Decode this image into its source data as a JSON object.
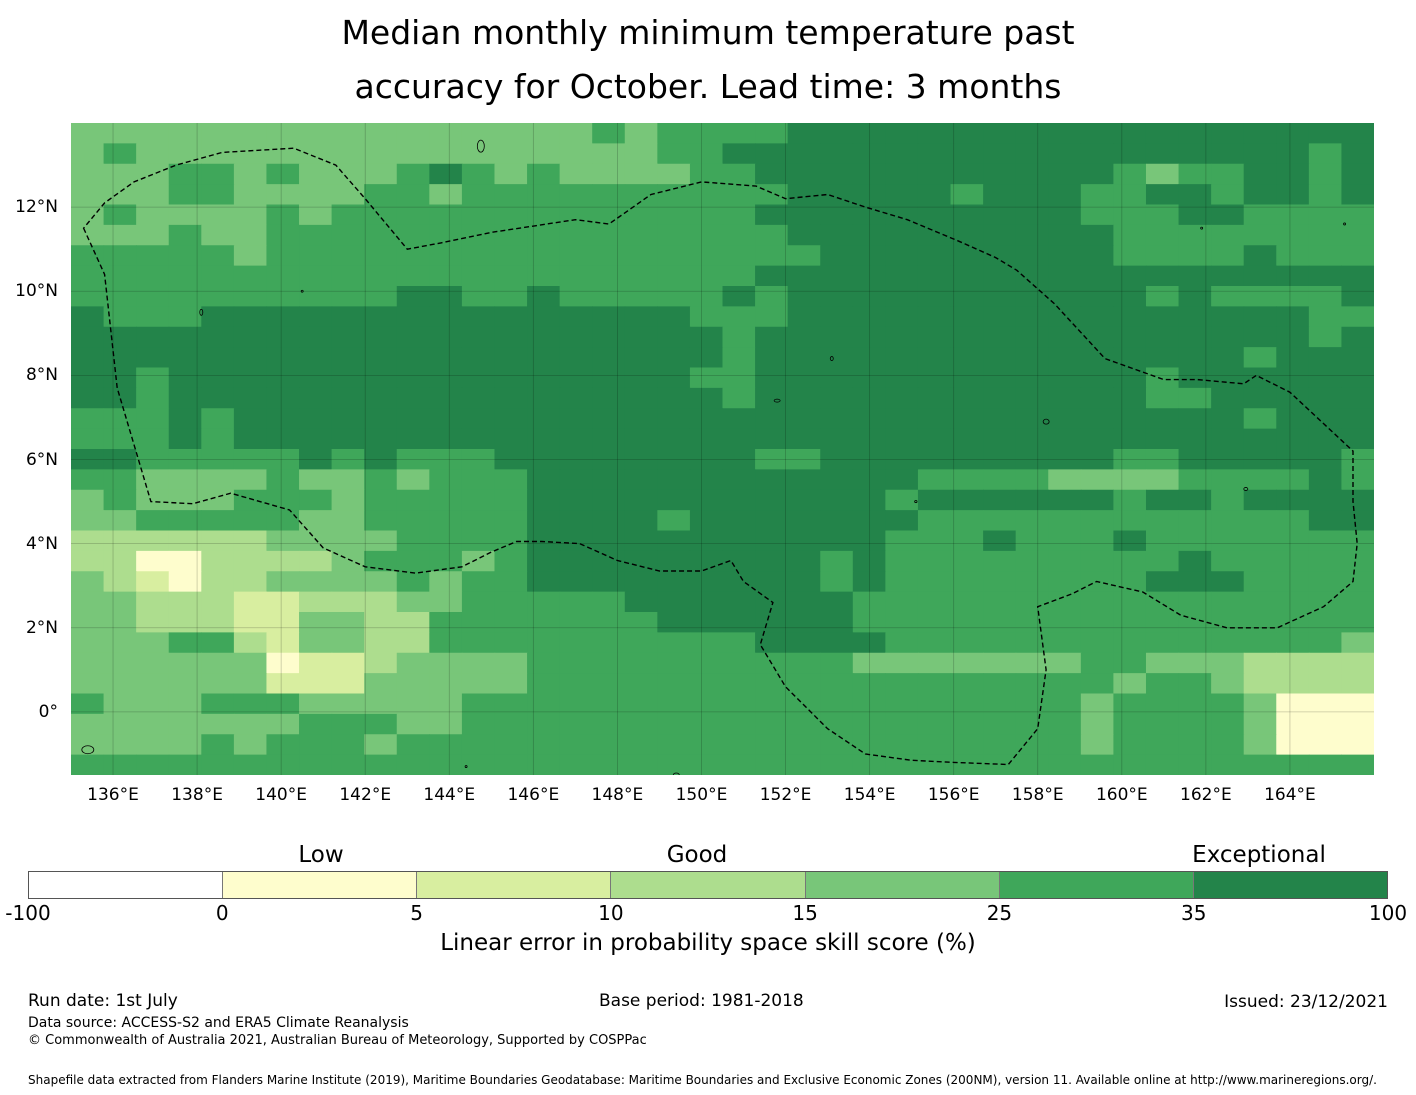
{
  "title": {
    "line1": "Median monthly minimum temperature past",
    "line2": "accuracy for October. Lead time: 3 months"
  },
  "map": {
    "lon_range": [
      135,
      166
    ],
    "lat_range": [
      -1.5,
      14
    ],
    "x_ticks": [
      "136°E",
      "138°E",
      "140°E",
      "142°E",
      "144°E",
      "146°E",
      "148°E",
      "150°E",
      "152°E",
      "154°E",
      "156°E",
      "158°E",
      "160°E",
      "162°E",
      "164°E"
    ],
    "y_ticks": [
      "12°N",
      "10°N",
      "8°N",
      "6°N",
      "4°N",
      "2°N",
      "0°"
    ],
    "gridlines": true,
    "boundary_line": "dashed",
    "grid_resolution_deg": 0.833,
    "cell_classes_rows_north_to_south": [
      "4444444444444444545555666666666666666666",
      "4544444444444444445566666666666666666656",
      "4445545444565454444556666666666654556656",
      "4445544445545555555555666665666556656656",
      "4544445455555555555556666666666555665555",
      "4445445555555555555555666666666655555555",
      "5555545555555555555555566666666655556555",
      "5555555555555555555556666666666666666666",
      "5555555555665565555565666666666665655556",
      "6555666666666666666555666666666666666655",
      "6666666666666666666656666666666666666656",
      "6666666666666666666656666666666666665666",
      "6656666666666666666556666666666665666666",
      "6656666666666666666656666666666665566666",
      "5556566666666666666666666666666666665666",
      "5556566666666666666666666666666666666666",
      "6655555656555666666665566666666655666665",
      "5544445445455566666666666655554444555565",
      "4544455545555566666666666566666656656666",
      "4455555445555566665666666655555555555566",
      "3333334444555566666666666555655565555555",
      "3311333345554566666666656555555555655555",
      "4321334444545566666666656555555556665555",
      "4433322333445555566666665555555555555555",
      "4433322443355555556666665555555555555555",
      "4445532443355555555556666555555555555554",
      "4444441223444455555555554444444554443333",
      "4444442224444455555555555555555545543333",
      "5444555444445555555555555555555455554111",
      "4444444555445555555555555555555455554111",
      "4444545554555555555555555555555455554111",
      "5555555555555555555555555555555555555555"
    ]
  },
  "colorbar": {
    "category_labels": [
      "Low",
      "Good",
      "Exceptional"
    ],
    "tick_labels": [
      "-100",
      "0",
      "5",
      "10",
      "15",
      "25",
      "35",
      "100"
    ],
    "colors": [
      "#ffffff",
      "#fefdcd",
      "#d8eea0",
      "#addd8e",
      "#78c679",
      "#3fa75a",
      "#23844a"
    ],
    "label": "Linear error in probability space skill score (%)"
  },
  "footer": {
    "run_date": "Run date: 1st July",
    "base_period": "Base period: 1981-2018",
    "issued": "Issued: 23/12/2021",
    "data_source": "Data source: ACCESS-S2 and ERA5 Climate Reanalysis",
    "copyright": "© Commonwealth of Australia 2021, Australian Bureau of Meteorology, Supported by COSPPac",
    "shapefile": "Shapefile data extracted from Flanders Marine Institute (2019), Maritime Boundaries Geodatabase: Maritime Boundaries and Exclusive Economic Zones (200NM), version 11. Available online at http://www.marineregions.org/."
  }
}
